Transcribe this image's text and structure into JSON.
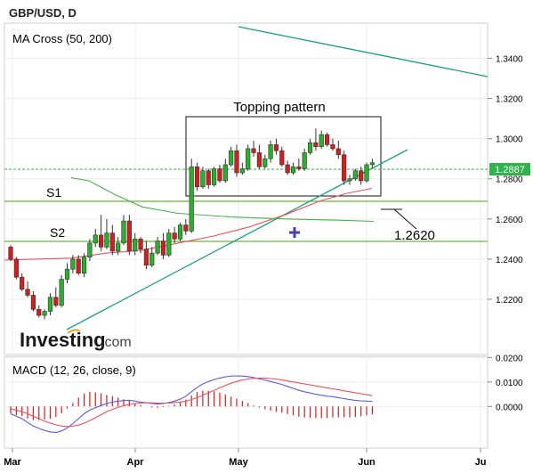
{
  "header": {
    "title": "GBP/USD, D"
  },
  "colors": {
    "up": "#2ab02a",
    "down": "#d11f1f",
    "ma50": "#e8525a",
    "ma200": "#4caf50",
    "trend": "#1b9e80",
    "support": "#6ab82e",
    "price": "#2fb34a",
    "macd": "#5a5ae0",
    "signal": "#e8525a"
  },
  "chart_data": [
    {
      "type": "candlestick",
      "title": "MA Cross (50, 200)",
      "ylim": [
        1.1925,
        1.3575
      ],
      "y_ticks": [
        "1.2200",
        "1.2400",
        "1.2600",
        "1.2800",
        "1.3000",
        "1.3200",
        "1.3400"
      ],
      "x_ticks": [
        "Mar",
        "Apr",
        "May",
        "Jun",
        "Ju"
      ],
      "current_price": "1.2887",
      "annotations": {
        "pattern_label": "Topping pattern",
        "s1_label": "S1",
        "s2_label": "S2",
        "level_label": "1.2620"
      },
      "levels": {
        "S1": 1.274,
        "S2": 1.2553,
        "price_line": 1.2887
      },
      "candles": [
        [
          1.246,
          1.247,
          1.24,
          1.239
        ],
        [
          1.24,
          1.241,
          1.231,
          1.23
        ],
        [
          1.231,
          1.233,
          1.225,
          1.224
        ],
        [
          1.225,
          1.229,
          1.222,
          1.221
        ],
        [
          1.222,
          1.224,
          1.215,
          1.214
        ],
        [
          1.215,
          1.217,
          1.212,
          1.211
        ],
        [
          1.212,
          1.215,
          1.214,
          1.21
        ],
        [
          1.214,
          1.223,
          1.221,
          1.212
        ],
        [
          1.221,
          1.226,
          1.217,
          1.216
        ],
        [
          1.217,
          1.232,
          1.23,
          1.216
        ],
        [
          1.23,
          1.238,
          1.235,
          1.228
        ],
        [
          1.235,
          1.242,
          1.24,
          1.233
        ],
        [
          1.24,
          1.242,
          1.233,
          1.232
        ],
        [
          1.233,
          1.243,
          1.241,
          1.231
        ],
        [
          1.241,
          1.25,
          1.248,
          1.239
        ],
        [
          1.248,
          1.255,
          1.252,
          1.246
        ],
        [
          1.252,
          1.262,
          1.246,
          1.244
        ],
        [
          1.246,
          1.26,
          1.253,
          1.245
        ],
        [
          1.253,
          1.257,
          1.244,
          1.242
        ],
        [
          1.244,
          1.251,
          1.248,
          1.242
        ],
        [
          1.248,
          1.262,
          1.259,
          1.247
        ],
        [
          1.259,
          1.262,
          1.244,
          1.242
        ],
        [
          1.244,
          1.253,
          1.25,
          1.242
        ],
        [
          1.25,
          1.251,
          1.245,
          1.243
        ],
        [
          1.245,
          1.249,
          1.237,
          1.235
        ],
        [
          1.237,
          1.246,
          1.243,
          1.236
        ],
        [
          1.243,
          1.251,
          1.249,
          1.242
        ],
        [
          1.249,
          1.253,
          1.242,
          1.24
        ],
        [
          1.242,
          1.255,
          1.253,
          1.241
        ],
        [
          1.253,
          1.256,
          1.25,
          1.248
        ],
        [
          1.25,
          1.258,
          1.257,
          1.249
        ],
        [
          1.257,
          1.26,
          1.254,
          1.252
        ],
        [
          1.254,
          1.29,
          1.286,
          1.253
        ],
        [
          1.286,
          1.288,
          1.276,
          1.274
        ],
        [
          1.276,
          1.286,
          1.284,
          1.275
        ],
        [
          1.284,
          1.285,
          1.277,
          1.275
        ],
        [
          1.277,
          1.286,
          1.285,
          1.276
        ],
        [
          1.285,
          1.287,
          1.279,
          1.278
        ],
        [
          1.279,
          1.29,
          1.287,
          1.278
        ],
        [
          1.287,
          1.296,
          1.294,
          1.286
        ],
        [
          1.294,
          1.297,
          1.283,
          1.281
        ],
        [
          1.283,
          1.288,
          1.285,
          1.282
        ],
        [
          1.285,
          1.297,
          1.295,
          1.284
        ],
        [
          1.295,
          1.299,
          1.293,
          1.291
        ],
        [
          1.293,
          1.297,
          1.286,
          1.285
        ],
        [
          1.286,
          1.292,
          1.29,
          1.285
        ],
        [
          1.29,
          1.299,
          1.297,
          1.288
        ],
        [
          1.297,
          1.3,
          1.294,
          1.292
        ],
        [
          1.294,
          1.296,
          1.287,
          1.286
        ],
        [
          1.287,
          1.289,
          1.283,
          1.282
        ],
        [
          1.283,
          1.288,
          1.286,
          1.282
        ],
        [
          1.286,
          1.29,
          1.285,
          1.284
        ],
        [
          1.285,
          1.295,
          1.293,
          1.284
        ],
        [
          1.293,
          1.3,
          1.298,
          1.292
        ],
        [
          1.298,
          1.305,
          1.296,
          1.294
        ],
        [
          1.296,
          1.304,
          1.302,
          1.295
        ],
        [
          1.302,
          1.303,
          1.297,
          1.296
        ],
        [
          1.297,
          1.3,
          1.295,
          1.294
        ],
        [
          1.295,
          1.299,
          1.292,
          1.29
        ],
        [
          1.292,
          1.294,
          1.279,
          1.277
        ],
        [
          1.279,
          1.282,
          1.28,
          1.277
        ],
        [
          1.28,
          1.285,
          1.284,
          1.279
        ],
        [
          1.284,
          1.286,
          1.279,
          1.277
        ],
        [
          1.279,
          1.288,
          1.287,
          1.278
        ],
        [
          1.287,
          1.29,
          1.288,
          1.285
        ]
      ],
      "series": [
        {
          "name": "MA 50",
          "values": [
            1.2465,
            1.246,
            1.2455,
            1.245,
            1.2445,
            1.244,
            1.2435,
            1.243,
            1.2425,
            1.242,
            1.2418,
            1.242,
            1.2425,
            1.243,
            1.244,
            1.245,
            1.2455,
            1.246,
            1.2462,
            1.2465,
            1.2468,
            1.2472,
            1.2476,
            1.248,
            1.2484,
            1.2488,
            1.2492,
            1.2496,
            1.25,
            1.2505,
            1.2512,
            1.252,
            1.253,
            1.254,
            1.2548,
            1.2556,
            1.2564,
            1.2572,
            1.258,
            1.259,
            1.26,
            1.261,
            1.2622,
            1.2634,
            1.2646,
            1.2658,
            1.2668,
            1.2678,
            1.2688,
            1.2698,
            1.2706,
            1.2714,
            1.2722,
            1.2728,
            1.2734,
            1.274,
            1.2746,
            1.2752,
            1.2758,
            1.2764,
            1.2768,
            1.2772,
            1.2776,
            1.278,
            1.2784
          ]
        },
        {
          "name": "MA 200",
          "values": [
            null,
            null,
            null,
            null,
            null,
            null,
            null,
            null,
            null,
            null,
            null,
            null,
            null,
            null,
            null,
            null,
            null,
            null,
            null,
            null,
            null,
            null,
            null,
            null,
            null,
            null,
            null,
            null,
            null,
            null,
            null,
            null,
            null,
            null,
            null,
            null,
            1.279,
            1.277,
            1.275,
            1.273,
            1.271,
            1.269,
            1.2675,
            1.266,
            1.265,
            1.264,
            1.2632,
            1.2625,
            1.2618,
            1.2612,
            1.2608,
            1.2604,
            1.26,
            1.2598,
            1.2596,
            1.2594,
            1.2592,
            1.259,
            1.2588,
            1.2587,
            1.2586,
            1.2585,
            1.2585,
            1.2585,
            1.2586
          ]
        }
      ]
    },
    {
      "type": "macd",
      "title": "MACD (12, 26, close, 9)",
      "ylim": [
        -0.017,
        0.0205
      ],
      "y_ticks": [
        "0.0000",
        "0.0100",
        "0.0200"
      ],
      "macd": [
        -0.003,
        -0.004,
        -0.005,
        -0.0065,
        -0.008,
        -0.009,
        -0.0098,
        -0.0104,
        -0.0106,
        -0.01,
        -0.0088,
        -0.007,
        -0.005,
        -0.003,
        -0.0015,
        -0.0005,
        0.0004,
        0.0012,
        0.0018,
        0.0022,
        0.0024,
        0.0025,
        0.0022,
        0.0018,
        0.0015,
        0.0012,
        0.001,
        0.0012,
        0.0016,
        0.0022,
        0.003,
        0.0042,
        0.006,
        0.0078,
        0.0092,
        0.0102,
        0.011,
        0.0116,
        0.0121,
        0.0124,
        0.0125,
        0.0124,
        0.0122,
        0.0118,
        0.0113,
        0.0108,
        0.0102,
        0.0096,
        0.009,
        0.0082,
        0.0074,
        0.0066,
        0.006,
        0.0055,
        0.005,
        0.0046,
        0.0042,
        0.004,
        0.0036,
        0.0032,
        0.0028,
        0.0025,
        0.0023,
        0.0022,
        0.0021
      ],
      "signal": [
        -0.001,
        -0.0015,
        -0.0022,
        -0.003,
        -0.004,
        -0.005,
        -0.006,
        -0.0068,
        -0.0075,
        -0.008,
        -0.0082,
        -0.008,
        -0.0076,
        -0.0068,
        -0.0058,
        -0.0046,
        -0.0034,
        -0.0022,
        -0.0012,
        -0.0004,
        0.0003,
        0.0008,
        0.0012,
        0.0014,
        0.0015,
        0.0015,
        0.0014,
        0.0014,
        0.0014,
        0.0016,
        0.0018,
        0.0022,
        0.0028,
        0.0036,
        0.0046,
        0.0056,
        0.0066,
        0.0076,
        0.0086,
        0.0095,
        0.0102,
        0.0108,
        0.0112,
        0.0115,
        0.0116,
        0.0116,
        0.0114,
        0.0112,
        0.0108,
        0.0104,
        0.01,
        0.0096,
        0.0092,
        0.0088,
        0.0084,
        0.008,
        0.0076,
        0.0072,
        0.0068,
        0.0064,
        0.006,
        0.0056,
        0.0052,
        0.0048,
        0.0044
      ]
    }
  ],
  "footer": {
    "brand": "Investing",
    "brand_suffix": ".com"
  }
}
